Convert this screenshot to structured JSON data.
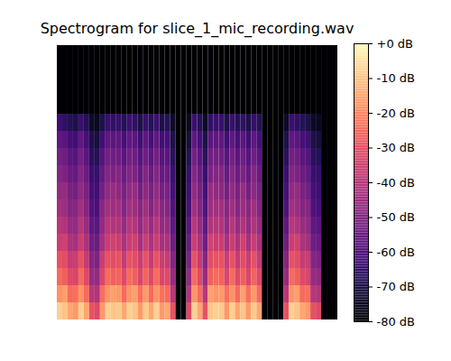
{
  "chart_data": {
    "type": "heatmap",
    "title": "Spectrogram for slice_1_mic_recording.wav",
    "tick_labels": false,
    "color": "magma",
    "cells": [
      [
        -8,
        -18,
        -25,
        -30,
        -36,
        -40,
        -44,
        -47,
        -50,
        -53,
        -57,
        -64,
        -80,
        -80,
        -80,
        -80
      ],
      [
        -10,
        -16,
        -27,
        -31,
        -35,
        -41,
        -45,
        -46,
        -51,
        -54,
        -58,
        -66,
        -80,
        -80,
        -80,
        -80
      ],
      [
        -15,
        -25,
        -32,
        -37,
        -42,
        -46,
        -50,
        -52,
        -55,
        -58,
        -62,
        -68,
        -80,
        -80,
        -80,
        -80
      ],
      [
        -17,
        -24,
        -33,
        -36,
        -43,
        -47,
        -49,
        -53,
        -56,
        -59,
        -63,
        -70,
        -80,
        -80,
        -80,
        -80
      ],
      [
        -8,
        -18,
        -25,
        -30,
        -36,
        -40,
        -44,
        -47,
        -50,
        -53,
        -57,
        -64,
        -80,
        -80,
        -80,
        -80
      ],
      [
        -15,
        -25,
        -32,
        -37,
        -42,
        -46,
        -50,
        -52,
        -55,
        -58,
        -62,
        -68,
        -80,
        -80,
        -80,
        -80
      ],
      [
        -30,
        -40,
        -46,
        -50,
        -54,
        -57,
        -60,
        -62,
        -64,
        -67,
        -70,
        -74,
        -80,
        -80,
        -80,
        -80
      ],
      [
        -32,
        -41,
        -47,
        -51,
        -55,
        -58,
        -61,
        -63,
        -65,
        -68,
        -71,
        -75,
        -80,
        -80,
        -80,
        -80
      ],
      [
        -17,
        -24,
        -33,
        -36,
        -43,
        -47,
        -49,
        -53,
        -56,
        -59,
        -63,
        -70,
        -80,
        -80,
        -80,
        -80
      ],
      [
        -8,
        -18,
        -25,
        -30,
        -36,
        -40,
        -44,
        -47,
        -50,
        -53,
        -57,
        -64,
        -80,
        -80,
        -80,
        -80
      ],
      [
        -10,
        -16,
        -27,
        -31,
        -35,
        -41,
        -45,
        -46,
        -51,
        -54,
        -58,
        -66,
        -80,
        -80,
        -80,
        -80
      ],
      [
        -9,
        -17,
        -26,
        -30,
        -36,
        -41,
        -44,
        -48,
        -50,
        -54,
        -57,
        -65,
        -80,
        -80,
        -80,
        -80
      ],
      [
        -15,
        -25,
        -32,
        -37,
        -42,
        -46,
        -50,
        -52,
        -55,
        -58,
        -62,
        -68,
        -80,
        -80,
        -80,
        -80
      ],
      [
        -8,
        -18,
        -25,
        -30,
        -36,
        -40,
        -44,
        -47,
        -50,
        -53,
        -57,
        -64,
        -80,
        -80,
        -80,
        -80
      ],
      [
        -10,
        -16,
        -27,
        -31,
        -35,
        -41,
        -45,
        -46,
        -51,
        -54,
        -58,
        -66,
        -80,
        -80,
        -80,
        -80
      ],
      [
        -17,
        -24,
        -33,
        -36,
        -43,
        -47,
        -49,
        -53,
        -56,
        -59,
        -63,
        -70,
        -80,
        -80,
        -80,
        -80
      ],
      [
        -9,
        -17,
        -26,
        -30,
        -36,
        -41,
        -44,
        -48,
        -50,
        -54,
        -57,
        -65,
        -80,
        -80,
        -80,
        -80
      ],
      [
        -15,
        -25,
        -32,
        -37,
        -42,
        -46,
        -50,
        -52,
        -55,
        -58,
        -62,
        -68,
        -80,
        -80,
        -80,
        -80
      ],
      [
        -8,
        -18,
        -25,
        -30,
        -36,
        -40,
        -44,
        -47,
        -50,
        -53,
        -57,
        -64,
        -80,
        -80,
        -80,
        -80
      ],
      [
        -17,
        -24,
        -33,
        -36,
        -43,
        -47,
        -49,
        -53,
        -56,
        -59,
        -63,
        -70,
        -80,
        -80,
        -80,
        -80
      ],
      [
        -15,
        -25,
        -32,
        -37,
        -42,
        -46,
        -50,
        -52,
        -55,
        -58,
        -62,
        -68,
        -80,
        -80,
        -80,
        -80
      ],
      [
        -30,
        -40,
        -46,
        -50,
        -54,
        -57,
        -60,
        -62,
        -64,
        -67,
        -70,
        -74,
        -80,
        -80,
        -80,
        -80
      ],
      [
        -78,
        -80,
        -80,
        -80,
        -80,
        -80,
        -80,
        -80,
        -80,
        -80,
        -80,
        -80,
        -80,
        -80,
        -80,
        -80
      ],
      [
        -80,
        -80,
        -80,
        -80,
        -80,
        -80,
        -80,
        -80,
        -80,
        -80,
        -80,
        -80,
        -80,
        -80,
        -80,
        -80
      ],
      [
        -32,
        -41,
        -47,
        -51,
        -55,
        -58,
        -61,
        -63,
        -65,
        -68,
        -71,
        -75,
        -80,
        -80,
        -80,
        -80
      ],
      [
        -8,
        -18,
        -25,
        -30,
        -36,
        -40,
        -44,
        -47,
        -50,
        -53,
        -57,
        -64,
        -80,
        -80,
        -80,
        -80
      ],
      [
        -15,
        -25,
        -32,
        -37,
        -42,
        -46,
        -50,
        -52,
        -55,
        -58,
        -62,
        -68,
        -80,
        -80,
        -80,
        -80
      ],
      [
        -30,
        -40,
        -46,
        -50,
        -54,
        -57,
        -60,
        -62,
        -64,
        -67,
        -70,
        -74,
        -80,
        -80,
        -80,
        -80
      ],
      [
        -10,
        -16,
        -27,
        -31,
        -35,
        -41,
        -45,
        -46,
        -51,
        -54,
        -58,
        -66,
        -80,
        -80,
        -80,
        -80
      ],
      [
        -8,
        -18,
        -25,
        -30,
        -36,
        -40,
        -44,
        -47,
        -50,
        -53,
        -57,
        -64,
        -80,
        -80,
        -80,
        -80
      ],
      [
        -9,
        -17,
        -26,
        -30,
        -36,
        -41,
        -44,
        -48,
        -50,
        -54,
        -57,
        -65,
        -80,
        -80,
        -80,
        -80
      ],
      [
        -17,
        -24,
        -33,
        -36,
        -43,
        -47,
        -49,
        -53,
        -56,
        -59,
        -63,
        -70,
        -80,
        -80,
        -80,
        -80
      ],
      [
        -8,
        -18,
        -25,
        -30,
        -36,
        -40,
        -44,
        -47,
        -50,
        -53,
        -57,
        -64,
        -80,
        -80,
        -80,
        -80
      ],
      [
        -15,
        -25,
        -32,
        -37,
        -42,
        -46,
        -50,
        -52,
        -55,
        -58,
        -62,
        -68,
        -80,
        -80,
        -80,
        -80
      ],
      [
        -10,
        -16,
        -27,
        -31,
        -35,
        -41,
        -45,
        -46,
        -51,
        -54,
        -58,
        -66,
        -80,
        -80,
        -80,
        -80
      ],
      [
        -17,
        -24,
        -33,
        -36,
        -43,
        -47,
        -49,
        -53,
        -56,
        -59,
        -63,
        -70,
        -80,
        -80,
        -80,
        -80
      ],
      [
        -9,
        -17,
        -26,
        -30,
        -36,
        -41,
        -44,
        -48,
        -50,
        -54,
        -57,
        -65,
        -80,
        -80,
        -80,
        -80
      ],
      [
        -15,
        -25,
        -32,
        -37,
        -42,
        -46,
        -50,
        -52,
        -55,
        -58,
        -62,
        -68,
        -80,
        -80,
        -80,
        -80
      ],
      [
        -80,
        -80,
        -80,
        -80,
        -80,
        -80,
        -80,
        -80,
        -80,
        -80,
        -80,
        -80,
        -80,
        -80,
        -80,
        -80
      ],
      [
        -80,
        -80,
        -80,
        -80,
        -80,
        -80,
        -80,
        -80,
        -80,
        -80,
        -80,
        -80,
        -80,
        -80,
        -80,
        -80
      ],
      [
        -80,
        -80,
        -80,
        -80,
        -80,
        -80,
        -80,
        -80,
        -80,
        -80,
        -80,
        -80,
        -80,
        -80,
        -80,
        -80
      ],
      [
        -78,
        -80,
        -80,
        -80,
        -80,
        -80,
        -80,
        -80,
        -80,
        -80,
        -80,
        -80,
        -80,
        -80,
        -80,
        -80
      ],
      [
        -30,
        -40,
        -46,
        -50,
        -54,
        -57,
        -60,
        -62,
        -64,
        -67,
        -70,
        -74,
        -80,
        -80,
        -80,
        -80
      ],
      [
        -8,
        -18,
        -25,
        -30,
        -36,
        -40,
        -44,
        -47,
        -50,
        -53,
        -57,
        -64,
        -80,
        -80,
        -80,
        -80
      ],
      [
        -10,
        -16,
        -27,
        -31,
        -35,
        -41,
        -45,
        -46,
        -51,
        -54,
        -58,
        -66,
        -80,
        -80,
        -80,
        -80
      ],
      [
        -15,
        -25,
        -32,
        -37,
        -42,
        -46,
        -50,
        -52,
        -55,
        -58,
        -62,
        -68,
        -80,
        -80,
        -80,
        -80
      ],
      [
        -17,
        -24,
        -33,
        -36,
        -43,
        -47,
        -49,
        -53,
        -56,
        -59,
        -63,
        -70,
        -80,
        -80,
        -80,
        -80
      ],
      [
        -30,
        -40,
        -46,
        -50,
        -54,
        -57,
        -60,
        -62,
        -64,
        -67,
        -70,
        -74,
        -80,
        -80,
        -80,
        -80
      ],
      [
        -32,
        -41,
        -47,
        -51,
        -55,
        -58,
        -61,
        -63,
        -65,
        -68,
        -71,
        -75,
        -80,
        -80,
        -80,
        -80
      ],
      [
        -80,
        -80,
        -80,
        -80,
        -80,
        -80,
        -80,
        -80,
        -80,
        -80,
        -80,
        -80,
        -80,
        -80,
        -80,
        -80
      ],
      [
        -80,
        -80,
        -80,
        -80,
        -80,
        -80,
        -80,
        -80,
        -80,
        -80,
        -80,
        -80,
        -80,
        -80,
        -80,
        -80
      ],
      [
        -80,
        -80,
        -80,
        -80,
        -80,
        -80,
        -80,
        -80,
        -80,
        -80,
        -80,
        -80,
        -80,
        -80,
        -80,
        -80
      ]
    ],
    "colorbar": {
      "range": [
        -80,
        0
      ],
      "ticks": [
        {
          "value": 0,
          "label": "+0 dB"
        },
        {
          "value": -10,
          "label": "-10 dB"
        },
        {
          "value": -20,
          "label": "-20 dB"
        },
        {
          "value": -30,
          "label": "-30 dB"
        },
        {
          "value": -40,
          "label": "-40 dB"
        },
        {
          "value": -50,
          "label": "-50 dB"
        },
        {
          "value": -60,
          "label": "-60 dB"
        },
        {
          "value": -70,
          "label": "-70 dB"
        },
        {
          "value": -80,
          "label": "-80 dB"
        }
      ]
    }
  }
}
